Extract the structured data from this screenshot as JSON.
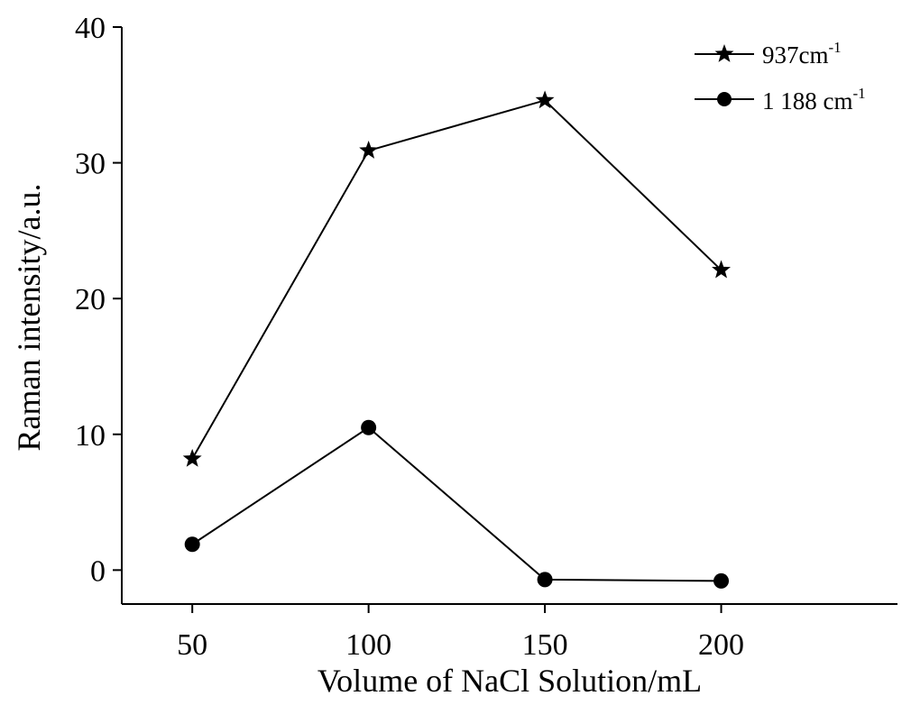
{
  "chart_data": {
    "type": "line",
    "x": [
      50,
      100,
      150,
      200
    ],
    "series": [
      {
        "name": "937cm",
        "name_sup": "-1",
        "marker": "star",
        "values": [
          8.2,
          30.9,
          34.6,
          22.1
        ]
      },
      {
        "name": "1 188 cm",
        "name_sup": "-1",
        "marker": "circle",
        "values": [
          1.9,
          10.5,
          -0.7,
          -0.8
        ]
      }
    ],
    "xlabel": "Volume of NaCl Solution/mL",
    "ylabel": "Raman intensity/a.u.",
    "xticks": [
      50,
      100,
      150,
      200
    ],
    "yticks": [
      0,
      10,
      20,
      30,
      40
    ],
    "xlim": [
      30,
      250
    ],
    "ylim": [
      -2.5,
      40
    ],
    "grid": false,
    "legend_position": "top-right"
  }
}
